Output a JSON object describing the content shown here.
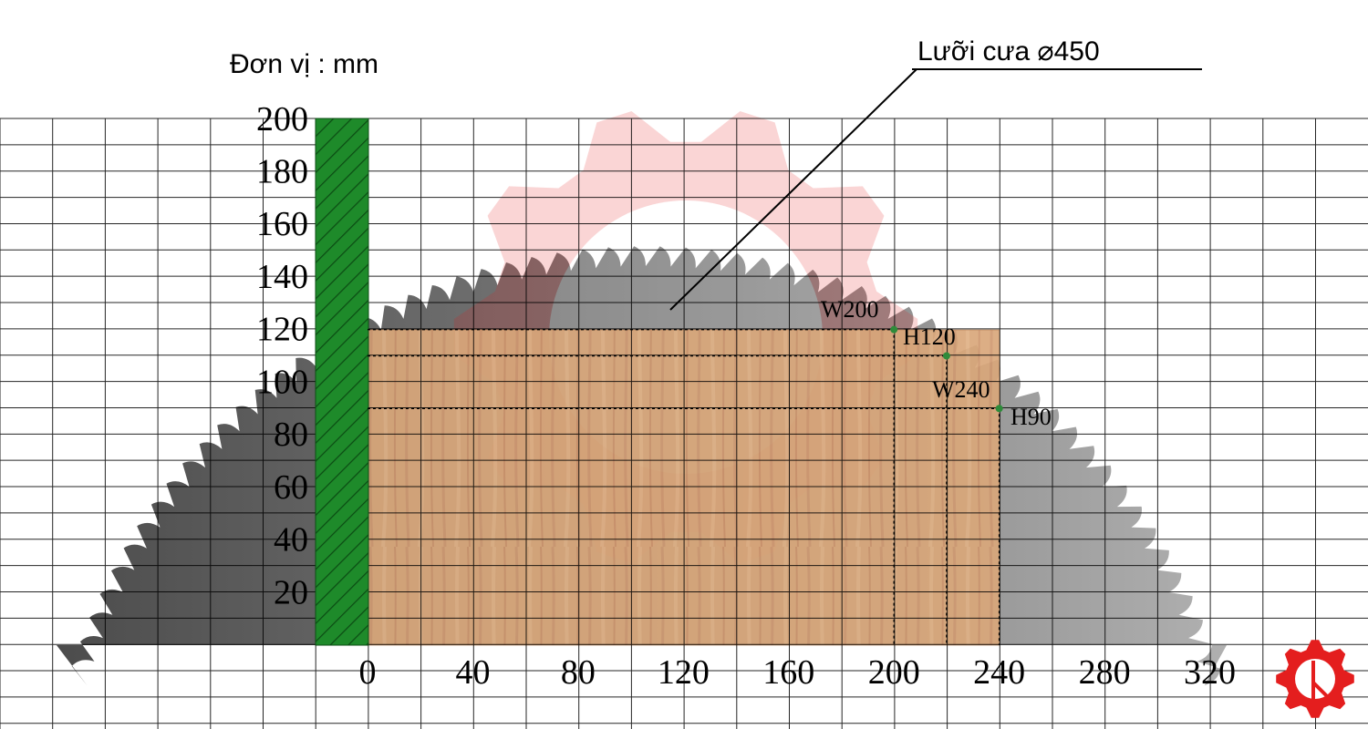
{
  "unit_label": "Đơn vị : mm",
  "blade_label": "Lưỡi cưa ⌀450",
  "y_ticks": [
    "20",
    "40",
    "60",
    "80",
    "100",
    "120",
    "140",
    "160",
    "180",
    "200"
  ],
  "x_ticks": [
    "0",
    "40",
    "80",
    "120",
    "160",
    "200",
    "240",
    "280",
    "320"
  ],
  "cut_points": {
    "w200": "W200",
    "h120": "H120",
    "w240": "W240",
    "h90": "H90"
  },
  "capacities": [
    {
      "width": 200,
      "height": 120
    },
    {
      "width": 220,
      "height": 110
    },
    {
      "width": 240,
      "height": 90
    }
  ],
  "colors": {
    "fence": "#1e8a2a",
    "blade_dark": "#5a5a5a",
    "blade_light": "#a8a8a8",
    "wood": "#d9a77a",
    "grid": "#000000",
    "marker": "#2e8b3a",
    "logo": "#e41e1e"
  },
  "icons": {
    "logo": "gear-logo-icon"
  }
}
